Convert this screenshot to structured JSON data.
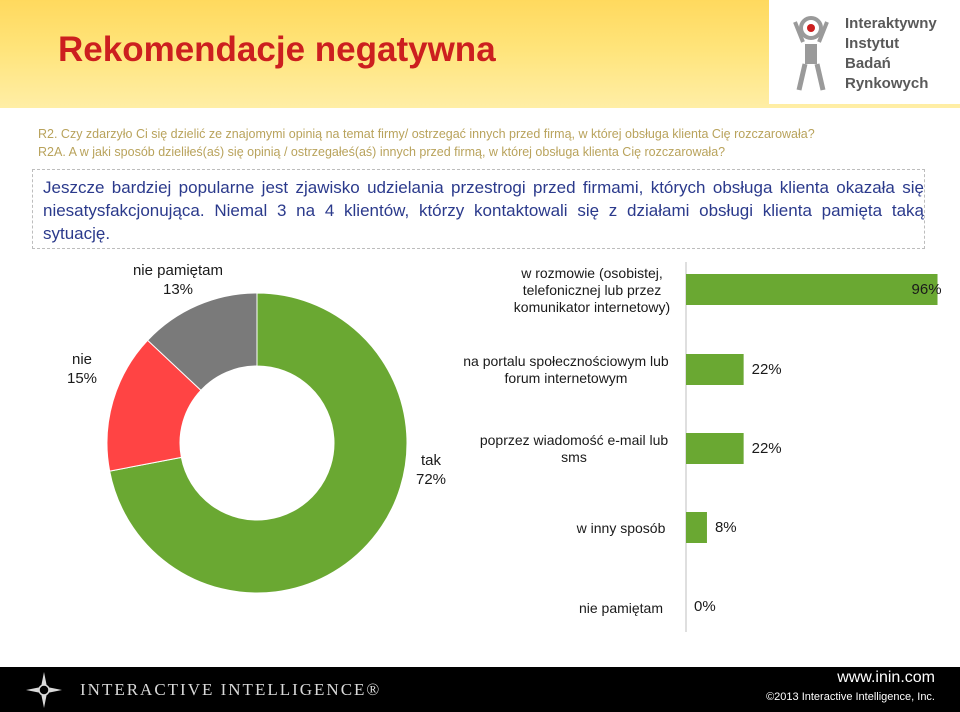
{
  "header": {
    "title": "Rekomendacje negatywna",
    "logo": {
      "lines": [
        "Interaktywny",
        "Instytut",
        "Badań",
        "Rynkowych"
      ],
      "icon": "human-figure-logo-icon"
    }
  },
  "questions": [
    "R2. Czy zdarzyło Ci się dzielić ze znajomymi opinią na temat firmy/ ostrzegać innych przed firmą, w której obsługa klienta Cię rozczarowała?",
    "R2A. A w jaki sposób dzieliłeś(aś) się opinią / ostrzegałeś(aś) innych przed firmą, w której obsługa klienta Cię rozczarowała?"
  ],
  "summary": "Jeszcze bardziej popularne jest zjawisko udzielania przestrogi przed firmami, których obsługa klienta okazała się niesatysfakcjonująca. Niemal 3 na 4 klientów, którzy kontaktowali się z działami obsługi klienta pamięta taką sytuację.",
  "colors": {
    "green": "#6aa832",
    "red": "#ff4444",
    "gray": "#7a7a7a",
    "title_red": "#cc1f1f",
    "summary_blue": "#2b3a8c"
  },
  "chart_data": [
    {
      "type": "pie",
      "style": "donut",
      "slices": [
        {
          "label": "tak",
          "value": 72,
          "display": "72%",
          "color": "#6aa832"
        },
        {
          "label": "nie",
          "value": 15,
          "display": "15%",
          "color": "#ff4444"
        },
        {
          "label": "nie pamiętam",
          "value": 13,
          "display": "13%",
          "color": "#7a7a7a"
        }
      ]
    },
    {
      "type": "bar",
      "orientation": "horizontal",
      "xlim": [
        0,
        100
      ],
      "categories": [
        "w rozmowie (osobistej, telefonicznej lub przez komunikator internetowy)",
        "na portalu społecznościowym lub forum internetowym",
        "poprzez wiadomość e-mail lub sms",
        "w inny sposób",
        "nie pamiętam"
      ],
      "values": [
        96,
        22,
        22,
        8,
        0
      ],
      "value_labels": [
        "96%",
        "22%",
        "22%",
        "8%",
        "0%"
      ],
      "color": "#6aa832"
    }
  ],
  "footer": {
    "brand": "INTERACTIVE INTELLIGENCE®",
    "brand_icon": "compass-star-icon",
    "url": "www.inin.com",
    "copyright": "©2013 Interactive Intelligence, Inc."
  }
}
